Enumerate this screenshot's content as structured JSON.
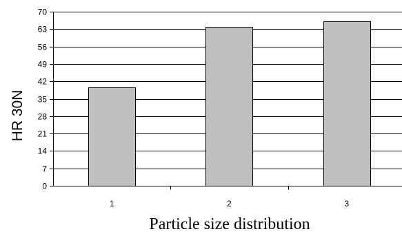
{
  "chart_data": {
    "type": "bar",
    "title": "",
    "xlabel": "Particle size distribution",
    "ylabel": "HR 30N",
    "categories": [
      "1",
      "2",
      "3"
    ],
    "series": [
      {
        "values": [
          39.5,
          63.8,
          66.2
        ]
      }
    ],
    "ylim": [
      0,
      70
    ],
    "yticks": [
      0,
      7,
      14,
      21,
      28,
      35,
      42,
      49,
      56,
      63,
      70
    ],
    "ytick_labels": [
      "0",
      "7",
      "14",
      "21",
      "28",
      "35",
      "42",
      "49",
      "56",
      "63",
      "70"
    ],
    "grid": true,
    "legend": "none",
    "colors": {
      "bar_fill": "#c0c0c0",
      "bar_stroke": "#000000",
      "grid": "#000000",
      "axis": "#000000"
    }
  }
}
